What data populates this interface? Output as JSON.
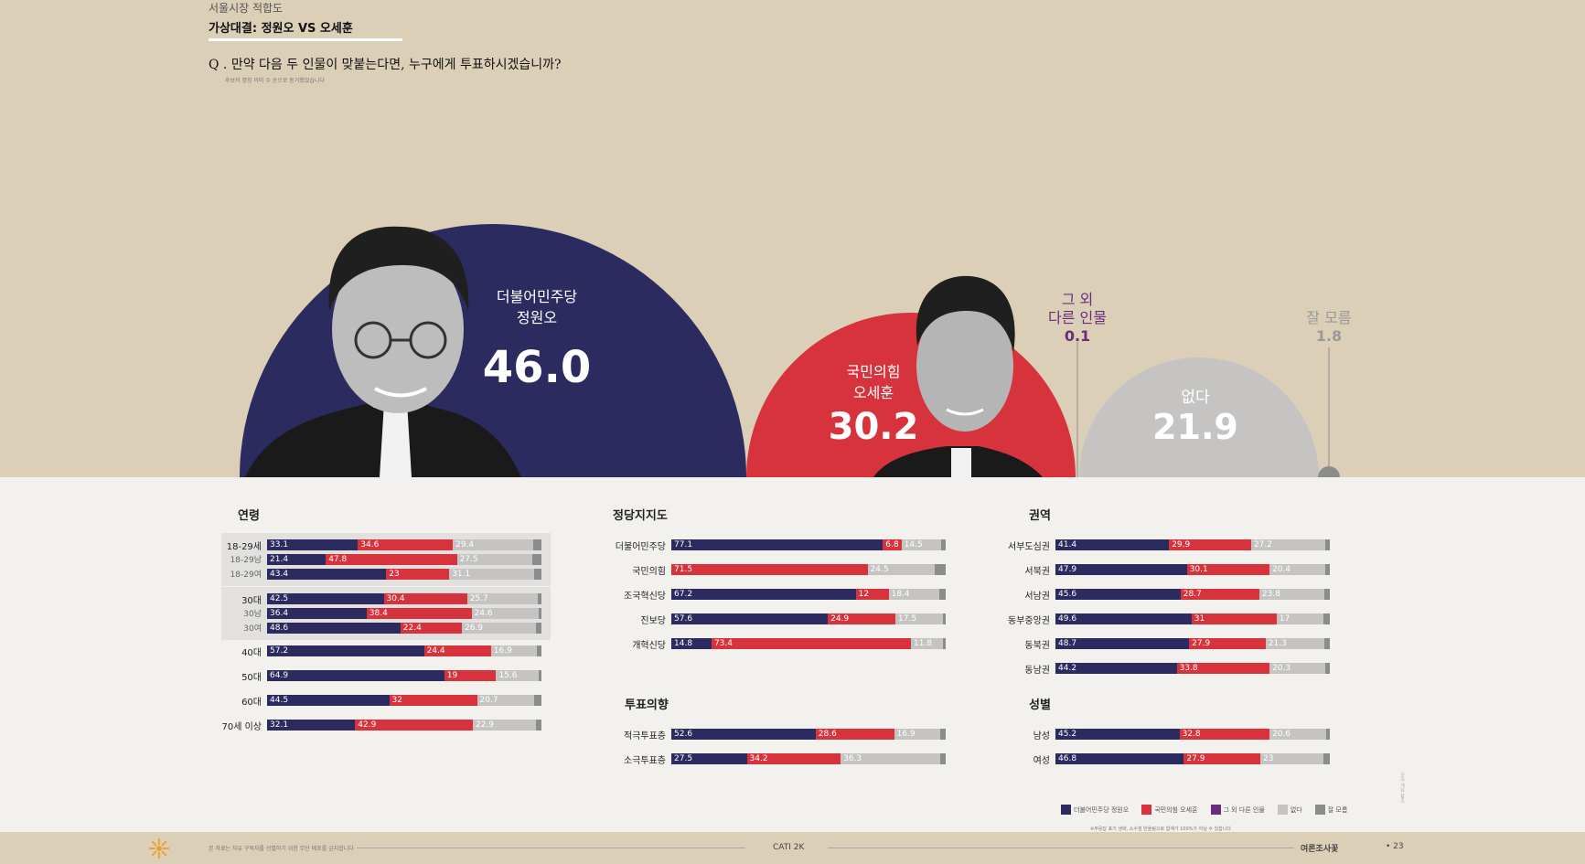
{
  "header": {
    "section_label": "서울시장 적합도",
    "matchup_title": "가상대결: 정원오 VS 오세훈",
    "question": "Q . 만약 다음 두 인물이 맞붙는다면, 누구에게 투표하시겠습니까?",
    "question_note": "후보의 명칭 의미 수 순으로 동거했었습니다"
  },
  "colors": {
    "democratic_navy": "#2c2b60",
    "ppp_red": "#d6333d",
    "other_purple": "#6a2d7c",
    "none_gray": "#c5c4c3",
    "unknown_gray": "#8c8c8c",
    "top_background": "#dccfb8"
  },
  "bubbles": {
    "jung": {
      "party": "더불어민주당",
      "name": "정원오",
      "value": "46.0"
    },
    "oh": {
      "party": "국민의힘",
      "name": "오세훈",
      "value": "30.2"
    },
    "other": {
      "label_line1": "그 외",
      "label_line2": "다른 인물",
      "value": "0.1"
    },
    "none": {
      "label": "없다",
      "value": "21.9"
    },
    "unknown": {
      "label": "잘 모름",
      "value": "1.8"
    }
  },
  "chart_data": [
    {
      "type": "bar",
      "title": "연령",
      "stacked": true,
      "categories": [
        "18-29세",
        "18-29남",
        "18-29여",
        "30대",
        "30남",
        "30여",
        "40대",
        "50대",
        "60대",
        "70세 이상"
      ],
      "series": [
        {
          "name": "더불어민주당 정원오",
          "values": [
            33.1,
            21.4,
            43.4,
            42.5,
            36.4,
            48.6,
            57.2,
            64.9,
            44.5,
            32.1
          ]
        },
        {
          "name": "국민의힘 오세훈",
          "values": [
            34.6,
            47.8,
            23.0,
            30.4,
            38.4,
            22.4,
            24.4,
            19.0,
            32.0,
            42.9
          ]
        },
        {
          "name": "없다",
          "values": [
            29.4,
            27.5,
            31.1,
            25.7,
            24.6,
            26.9,
            16.9,
            15.6,
            20.7,
            22.9
          ]
        }
      ]
    },
    {
      "type": "bar",
      "title": "정당지지도",
      "stacked": true,
      "categories": [
        "더불어민주당",
        "국민의힘",
        "조국혁신당",
        "진보당",
        "개혁신당"
      ],
      "series": [
        {
          "name": "더불어민주당 정원오",
          "values": [
            77.1,
            null,
            67.2,
            57.6,
            14.8
          ]
        },
        {
          "name": "국민의힘 오세훈",
          "values": [
            6.8,
            71.5,
            12.0,
            24.9,
            73.4
          ]
        },
        {
          "name": "없다",
          "values": [
            14.5,
            24.5,
            18.4,
            17.5,
            11.8
          ]
        }
      ]
    },
    {
      "type": "bar",
      "title": "투표의향",
      "stacked": true,
      "categories": [
        "적극투표층",
        "소극투표층"
      ],
      "series": [
        {
          "name": "더불어민주당 정원오",
          "values": [
            52.6,
            27.5
          ]
        },
        {
          "name": "국민의힘 오세훈",
          "values": [
            28.6,
            34.2
          ]
        },
        {
          "name": "없다",
          "values": [
            16.9,
            36.3
          ]
        }
      ]
    },
    {
      "type": "bar",
      "title": "권역",
      "stacked": true,
      "categories": [
        "서부도심권",
        "서북권",
        "서남권",
        "동부중앙권",
        "동북권",
        "동남권"
      ],
      "series": [
        {
          "name": "더불어민주당 정원오",
          "values": [
            41.4,
            47.9,
            45.6,
            49.6,
            48.7,
            44.2
          ]
        },
        {
          "name": "국민의힘 오세훈",
          "values": [
            29.9,
            30.1,
            28.7,
            31.0,
            27.9,
            33.8
          ]
        },
        {
          "name": "없다",
          "values": [
            27.2,
            20.4,
            23.8,
            17.0,
            21.3,
            20.3
          ]
        }
      ]
    },
    {
      "type": "bar",
      "title": "성별",
      "stacked": true,
      "categories": [
        "남성",
        "여성"
      ],
      "series": [
        {
          "name": "더불어민주당 정원오",
          "values": [
            45.2,
            46.8
          ]
        },
        {
          "name": "국민의힘 오세훈",
          "values": [
            32.8,
            27.9
          ]
        },
        {
          "name": "없다",
          "values": [
            20.6,
            23.0
          ]
        }
      ]
    }
  ],
  "legend": [
    {
      "label": "더불어민주당 정원오",
      "color": "#2c2b60"
    },
    {
      "label": "국민의힘 오세훈",
      "color": "#d6333d"
    },
    {
      "label": "그 외 다른 인물",
      "color": "#6a2d7c"
    },
    {
      "label": "없다",
      "color": "#c5c4c3"
    },
    {
      "label": "잘 모름",
      "color": "#8c8c8c"
    }
  ],
  "legend_note": "※무응답 표기 생략, 소수점 반올림으로 합계가 100%가 아닐 수 있습니다",
  "side_note": "조사 개요 참조",
  "footer": {
    "note": "본 자료는 자유 구독자를 선별하기 위한 무단 배포를 금지합니다",
    "center": "CATI 2K",
    "right": "여론조사꽃",
    "page": "• 23"
  }
}
